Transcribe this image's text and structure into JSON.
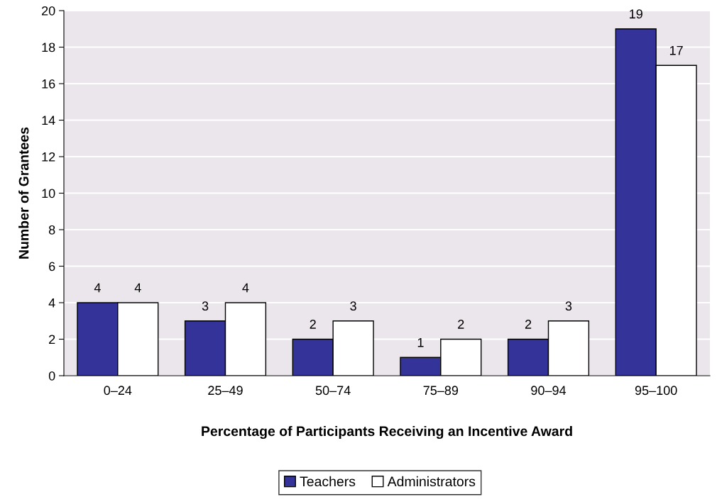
{
  "chart_data": {
    "type": "bar",
    "xlabel": "Percentage of Participants Receiving an Incentive Award",
    "ylabel": "Number of Grantees",
    "categories": [
      "0–24",
      "25–49",
      "50–74",
      "75–89",
      "90–94",
      "95–100"
    ],
    "series": [
      {
        "name": "Teachers",
        "color": "#333399",
        "values": [
          4,
          3,
          2,
          1,
          2,
          19
        ]
      },
      {
        "name": "Administrators",
        "color": "#ffffff",
        "values": [
          4,
          4,
          3,
          2,
          3,
          17
        ]
      }
    ],
    "ylim": [
      0,
      20
    ],
    "yticks": [
      0,
      2,
      4,
      6,
      8,
      10,
      12,
      14,
      16,
      18,
      20
    ],
    "grid": "y",
    "legend": "bottom",
    "data_labels": true
  }
}
